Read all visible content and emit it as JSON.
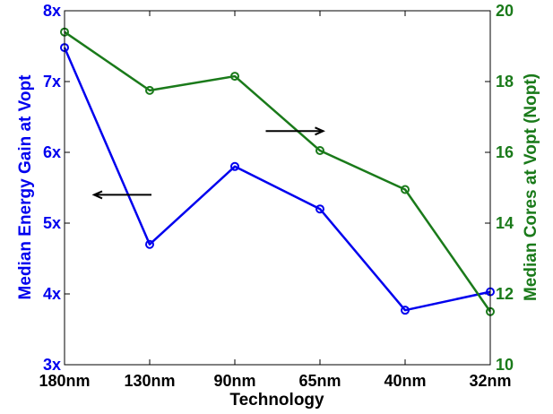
{
  "chart_data": {
    "type": "line",
    "xlabel": "Technology",
    "categories": [
      "180nm",
      "130nm",
      "90nm",
      "65nm",
      "40nm",
      "32nm"
    ],
    "y_left": {
      "label": "Median Energy Gain at Vopt",
      "ticks": [
        "3x",
        "4x",
        "5x",
        "6x",
        "7x",
        "8x"
      ],
      "tick_values": [
        3,
        4,
        5,
        6,
        7,
        8
      ],
      "lim": [
        3,
        8
      ],
      "color": "#0000ee"
    },
    "y_right": {
      "label": "Median Cores at Vopt (Nopt)",
      "ticks": [
        "10",
        "12",
        "14",
        "16",
        "18",
        "20"
      ],
      "tick_values": [
        10,
        12,
        14,
        16,
        18,
        20
      ],
      "lim": [
        10,
        20
      ],
      "color": "#1a7a1a"
    },
    "series": [
      {
        "axis": "left",
        "color": "#0000ee",
        "values": [
          7.48,
          4.7,
          5.8,
          5.2,
          3.77,
          4.03
        ]
      },
      {
        "axis": "right",
        "color": "#1a7a1a",
        "values": [
          19.4,
          17.75,
          18.15,
          16.05,
          14.95,
          11.5
        ]
      }
    ],
    "annotations": [
      {
        "arrow": "left",
        "points_to": "left axis",
        "x_cat": 1.0,
        "y_value_left": 5.4
      },
      {
        "arrow": "right",
        "points_to": "right axis",
        "x_cat": 2.7,
        "y_value_left": 6.3
      }
    ],
    "grid": false,
    "legend": "none"
  }
}
